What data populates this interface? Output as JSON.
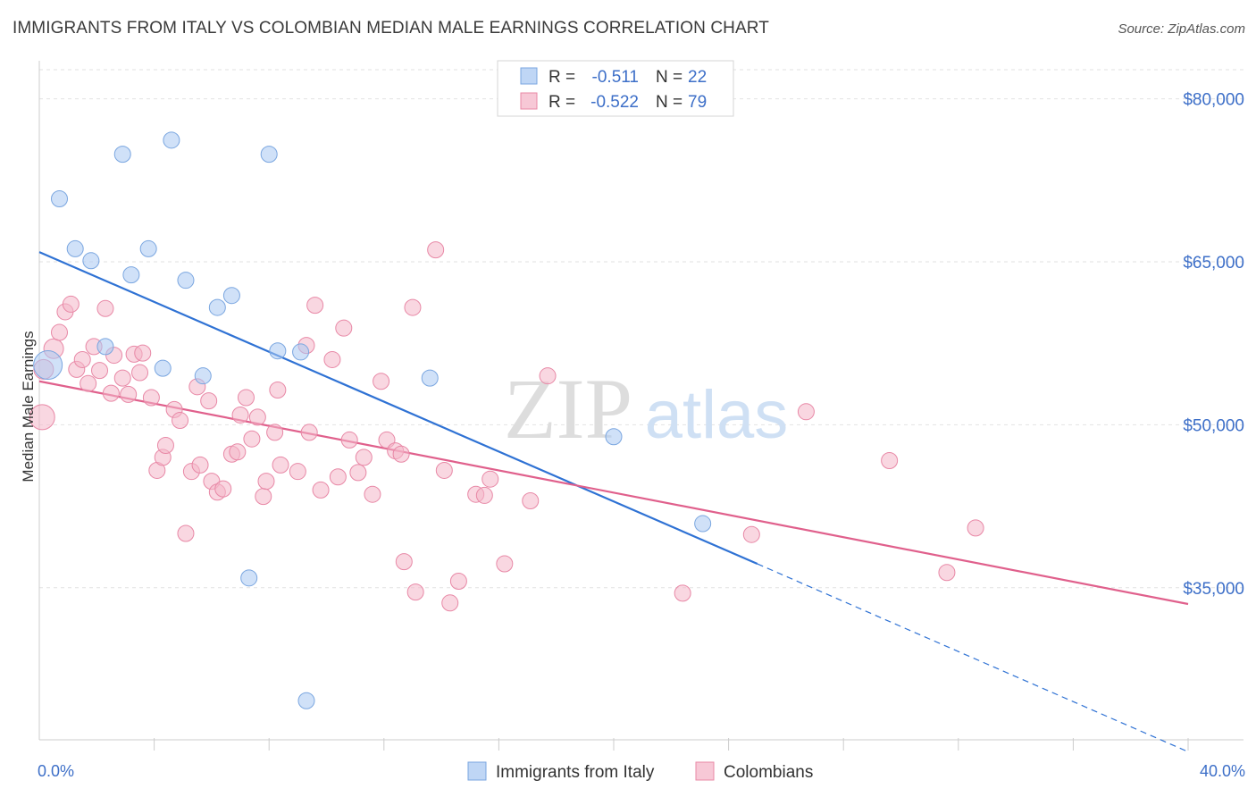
{
  "chart_data": {
    "type": "scatter",
    "title": "IMMIGRANTS FROM ITALY VS COLOMBIAN MEDIAN MALE EARNINGS CORRELATION CHART",
    "source": "Source: ZipAtlas.com",
    "watermark": {
      "zip": "ZIP",
      "atlas": "atlas"
    },
    "ylabel": "Median Male Earnings",
    "xlim": [
      0,
      40
    ],
    "ylim": [
      21000,
      84000
    ],
    "x_tick_labels": [
      {
        "value": 0,
        "label": "0.0%"
      },
      {
        "value": 40,
        "label": "40.0%"
      }
    ],
    "y_ticks": [
      {
        "value": 80000,
        "label": "$80,000"
      },
      {
        "value": 65000,
        "label": "$65,000"
      },
      {
        "value": 50000,
        "label": "$50,000"
      },
      {
        "value": 35000,
        "label": "$35,000"
      }
    ],
    "legend_stats": [
      {
        "r_label": "R =",
        "r_value": "-0.511",
        "n_label": "N =",
        "n_value": "22",
        "color": "#a9c8f2"
      },
      {
        "r_label": "R =",
        "r_value": "-0.522",
        "n_label": "N =",
        "n_value": "79",
        "color": "#f4b6c8"
      }
    ],
    "series": [
      {
        "name": "Immigrants from Italy",
        "color": "#a9c8f2",
        "stroke": "#7aa6e0",
        "line_color": "#2f72d4",
        "trend": {
          "x1": 0,
          "y1": 65900,
          "x2": 25,
          "y2": 37200,
          "dash_to_x": 40,
          "dash_to_y": 19900
        },
        "points": [
          [
            0.3,
            55500,
            16
          ],
          [
            0.7,
            70800,
            9
          ],
          [
            1.25,
            66200,
            9
          ],
          [
            1.8,
            65100,
            9
          ],
          [
            2.9,
            74900,
            9
          ],
          [
            3.2,
            63800,
            9
          ],
          [
            3.8,
            66200,
            9
          ],
          [
            4.6,
            76200,
            9
          ],
          [
            5.1,
            63300,
            9
          ],
          [
            6.2,
            60800,
            9
          ],
          [
            6.7,
            61900,
            9
          ],
          [
            8.0,
            74900,
            9
          ],
          [
            2.3,
            57200,
            9
          ],
          [
            4.3,
            55200,
            9
          ],
          [
            5.7,
            54500,
            9
          ],
          [
            8.3,
            56800,
            9
          ],
          [
            9.1,
            56700,
            9
          ],
          [
            13.6,
            54300,
            9
          ],
          [
            20.0,
            48900,
            9
          ],
          [
            23.1,
            40900,
            9
          ],
          [
            7.3,
            35900,
            9
          ],
          [
            9.3,
            24600,
            9
          ]
        ]
      },
      {
        "name": "Colombians",
        "color": "#f4b6c8",
        "stroke": "#e888a6",
        "line_color": "#e0608c",
        "trend": {
          "x1": 0,
          "y1": 54000,
          "x2": 40,
          "y2": 33500
        },
        "points": [
          [
            0.1,
            50700,
            14
          ],
          [
            0.5,
            57000,
            11
          ],
          [
            0.7,
            58500,
            9
          ],
          [
            0.9,
            60400,
            9
          ],
          [
            1.1,
            61100,
            9
          ],
          [
            1.3,
            55100,
            9
          ],
          [
            1.5,
            56000,
            9
          ],
          [
            1.7,
            53800,
            9
          ],
          [
            1.9,
            57200,
            9
          ],
          [
            2.1,
            55000,
            9
          ],
          [
            2.3,
            60700,
            9
          ],
          [
            2.5,
            52900,
            9
          ],
          [
            2.6,
            56400,
            9
          ],
          [
            2.9,
            54300,
            9
          ],
          [
            3.1,
            52800,
            9
          ],
          [
            3.3,
            56500,
            9
          ],
          [
            3.5,
            54800,
            9
          ],
          [
            3.6,
            56600,
            9
          ],
          [
            3.9,
            52500,
            9
          ],
          [
            4.1,
            45800,
            9
          ],
          [
            4.3,
            47000,
            9
          ],
          [
            4.4,
            48100,
            9
          ],
          [
            4.7,
            51400,
            9
          ],
          [
            4.9,
            50400,
            9
          ],
          [
            5.1,
            40000,
            9
          ],
          [
            5.3,
            45700,
            9
          ],
          [
            5.5,
            53500,
            9
          ],
          [
            5.6,
            46300,
            9
          ],
          [
            5.9,
            52200,
            9
          ],
          [
            6.0,
            44800,
            9
          ],
          [
            6.2,
            43800,
            9
          ],
          [
            6.4,
            44100,
            9
          ],
          [
            6.7,
            47300,
            9
          ],
          [
            6.9,
            47500,
            9
          ],
          [
            7.0,
            50900,
            9
          ],
          [
            7.2,
            52500,
            9
          ],
          [
            7.4,
            48700,
            9
          ],
          [
            7.6,
            50700,
            9
          ],
          [
            7.8,
            43400,
            9
          ],
          [
            7.9,
            44800,
            9
          ],
          [
            8.2,
            49300,
            9
          ],
          [
            8.3,
            53200,
            9
          ],
          [
            8.4,
            46300,
            9
          ],
          [
            9.0,
            45700,
            9
          ],
          [
            9.3,
            57300,
            9
          ],
          [
            9.4,
            49300,
            9
          ],
          [
            9.6,
            61000,
            9
          ],
          [
            9.8,
            44000,
            9
          ],
          [
            10.2,
            56000,
            9
          ],
          [
            10.4,
            45200,
            9
          ],
          [
            10.6,
            58900,
            9
          ],
          [
            10.8,
            48600,
            9
          ],
          [
            11.1,
            45600,
            9
          ],
          [
            11.3,
            47000,
            9
          ],
          [
            11.6,
            43600,
            9
          ],
          [
            11.9,
            54000,
            9
          ],
          [
            12.1,
            48600,
            9
          ],
          [
            12.4,
            47600,
            9
          ],
          [
            12.6,
            47300,
            9
          ],
          [
            12.7,
            37400,
            9
          ],
          [
            13.0,
            60800,
            9
          ],
          [
            13.1,
            34600,
            9
          ],
          [
            13.8,
            66100,
            9
          ],
          [
            14.1,
            45800,
            9
          ],
          [
            14.3,
            33600,
            9
          ],
          [
            14.6,
            35600,
            9
          ],
          [
            15.2,
            43600,
            9
          ],
          [
            15.5,
            43500,
            9
          ],
          [
            15.7,
            45000,
            9
          ],
          [
            16.2,
            37200,
            9
          ],
          [
            17.1,
            43000,
            9
          ],
          [
            17.7,
            54500,
            9
          ],
          [
            22.4,
            34500,
            9
          ],
          [
            24.8,
            39900,
            9
          ],
          [
            26.7,
            51200,
            9
          ],
          [
            29.6,
            46700,
            9
          ],
          [
            31.6,
            36400,
            9
          ],
          [
            32.6,
            40500,
            9
          ],
          [
            0.15,
            55100,
            11
          ]
        ]
      }
    ]
  }
}
